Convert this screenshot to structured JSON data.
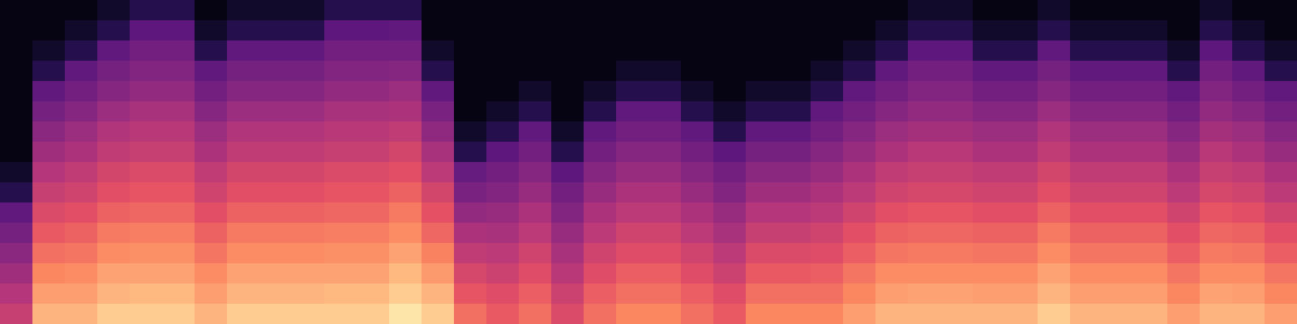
{
  "chart_data": {
    "type": "heatmap",
    "tick_labels": false,
    "zlim": [
      0,
      1
    ],
    "cells": [
      [
        0.03,
        0.03,
        0.03,
        0.08,
        0.15,
        0.15,
        0.03,
        0.08,
        0.08,
        0.08,
        0.15,
        0.15,
        0.15,
        0.03,
        0.03,
        0.03,
        0.03,
        0.03,
        0.03,
        0.03,
        0.03,
        0.03,
        0.03,
        0.03,
        0.03,
        0.03,
        0.03,
        0.03,
        0.08,
        0.08,
        0.03,
        0.03,
        0.08,
        0.03,
        0.03,
        0.03,
        0.03,
        0.08,
        0.03,
        0.03
      ],
      [
        0.03,
        0.03,
        0.08,
        0.15,
        0.29,
        0.29,
        0.08,
        0.15,
        0.15,
        0.15,
        0.29,
        0.29,
        0.3,
        0.03,
        0.03,
        0.03,
        0.03,
        0.03,
        0.03,
        0.03,
        0.03,
        0.03,
        0.03,
        0.03,
        0.03,
        0.03,
        0.03,
        0.08,
        0.15,
        0.15,
        0.08,
        0.08,
        0.15,
        0.08,
        0.08,
        0.08,
        0.03,
        0.15,
        0.08,
        0.03
      ],
      [
        0.03,
        0.08,
        0.15,
        0.3,
        0.34,
        0.34,
        0.15,
        0.3,
        0.3,
        0.3,
        0.34,
        0.34,
        0.34,
        0.08,
        0.03,
        0.03,
        0.03,
        0.03,
        0.03,
        0.03,
        0.03,
        0.03,
        0.03,
        0.03,
        0.03,
        0.03,
        0.08,
        0.15,
        0.29,
        0.29,
        0.15,
        0.15,
        0.3,
        0.15,
        0.15,
        0.15,
        0.08,
        0.29,
        0.15,
        0.08
      ],
      [
        0.03,
        0.15,
        0.3,
        0.35,
        0.38,
        0.38,
        0.3,
        0.35,
        0.35,
        0.35,
        0.38,
        0.38,
        0.39,
        0.15,
        0.03,
        0.03,
        0.03,
        0.03,
        0.03,
        0.08,
        0.08,
        0.03,
        0.03,
        0.03,
        0.03,
        0.08,
        0.15,
        0.3,
        0.34,
        0.34,
        0.3,
        0.3,
        0.35,
        0.3,
        0.3,
        0.3,
        0.15,
        0.34,
        0.3,
        0.15
      ],
      [
        0.03,
        0.3,
        0.34,
        0.39,
        0.42,
        0.42,
        0.34,
        0.39,
        0.39,
        0.39,
        0.42,
        0.42,
        0.44,
        0.3,
        0.03,
        0.03,
        0.08,
        0.03,
        0.08,
        0.15,
        0.15,
        0.08,
        0.03,
        0.08,
        0.08,
        0.15,
        0.3,
        0.34,
        0.38,
        0.38,
        0.34,
        0.34,
        0.39,
        0.34,
        0.34,
        0.34,
        0.3,
        0.38,
        0.34,
        0.3
      ],
      [
        0.03,
        0.35,
        0.39,
        0.44,
        0.47,
        0.47,
        0.39,
        0.44,
        0.44,
        0.44,
        0.47,
        0.47,
        0.48,
        0.36,
        0.03,
        0.08,
        0.15,
        0.03,
        0.15,
        0.3,
        0.3,
        0.15,
        0.08,
        0.15,
        0.15,
        0.3,
        0.34,
        0.39,
        0.42,
        0.42,
        0.39,
        0.39,
        0.44,
        0.39,
        0.39,
        0.39,
        0.34,
        0.42,
        0.39,
        0.34
      ],
      [
        0.03,
        0.4,
        0.44,
        0.49,
        0.51,
        0.51,
        0.44,
        0.49,
        0.49,
        0.49,
        0.51,
        0.51,
        0.53,
        0.41,
        0.08,
        0.15,
        0.3,
        0.08,
        0.3,
        0.34,
        0.34,
        0.3,
        0.15,
        0.3,
        0.3,
        0.34,
        0.39,
        0.44,
        0.46,
        0.46,
        0.44,
        0.44,
        0.49,
        0.44,
        0.44,
        0.44,
        0.39,
        0.46,
        0.44,
        0.39
      ],
      [
        0.03,
        0.45,
        0.48,
        0.53,
        0.55,
        0.55,
        0.48,
        0.53,
        0.53,
        0.53,
        0.55,
        0.55,
        0.58,
        0.47,
        0.15,
        0.29,
        0.34,
        0.15,
        0.34,
        0.39,
        0.39,
        0.34,
        0.29,
        0.35,
        0.35,
        0.39,
        0.43,
        0.48,
        0.51,
        0.51,
        0.48,
        0.48,
        0.53,
        0.48,
        0.48,
        0.48,
        0.43,
        0.51,
        0.48,
        0.43
      ],
      [
        0.08,
        0.5,
        0.53,
        0.58,
        0.6,
        0.6,
        0.53,
        0.58,
        0.58,
        0.58,
        0.6,
        0.6,
        0.62,
        0.52,
        0.31,
        0.34,
        0.39,
        0.29,
        0.39,
        0.43,
        0.43,
        0.39,
        0.34,
        0.4,
        0.4,
        0.43,
        0.48,
        0.53,
        0.55,
        0.55,
        0.53,
        0.53,
        0.58,
        0.53,
        0.53,
        0.53,
        0.48,
        0.55,
        0.53,
        0.48
      ],
      [
        0.15,
        0.55,
        0.57,
        0.62,
        0.64,
        0.64,
        0.57,
        0.62,
        0.62,
        0.62,
        0.64,
        0.64,
        0.67,
        0.58,
        0.36,
        0.38,
        0.43,
        0.34,
        0.43,
        0.48,
        0.48,
        0.43,
        0.38,
        0.45,
        0.45,
        0.48,
        0.52,
        0.57,
        0.59,
        0.59,
        0.57,
        0.57,
        0.62,
        0.57,
        0.57,
        0.57,
        0.52,
        0.59,
        0.57,
        0.52
      ],
      [
        0.3,
        0.6,
        0.62,
        0.67,
        0.68,
        0.68,
        0.62,
        0.67,
        0.67,
        0.67,
        0.68,
        0.68,
        0.72,
        0.63,
        0.42,
        0.43,
        0.48,
        0.38,
        0.48,
        0.52,
        0.52,
        0.48,
        0.43,
        0.5,
        0.5,
        0.52,
        0.57,
        0.62,
        0.64,
        0.64,
        0.62,
        0.62,
        0.67,
        0.62,
        0.62,
        0.62,
        0.57,
        0.64,
        0.62,
        0.57
      ],
      [
        0.35,
        0.65,
        0.67,
        0.72,
        0.73,
        0.73,
        0.67,
        0.72,
        0.72,
        0.72,
        0.73,
        0.73,
        0.76,
        0.68,
        0.48,
        0.47,
        0.52,
        0.43,
        0.52,
        0.57,
        0.57,
        0.52,
        0.47,
        0.55,
        0.55,
        0.57,
        0.62,
        0.67,
        0.68,
        0.68,
        0.67,
        0.67,
        0.72,
        0.67,
        0.67,
        0.67,
        0.62,
        0.68,
        0.67,
        0.62
      ],
      [
        0.4,
        0.7,
        0.71,
        0.76,
        0.77,
        0.77,
        0.71,
        0.76,
        0.76,
        0.76,
        0.77,
        0.77,
        0.81,
        0.74,
        0.53,
        0.52,
        0.57,
        0.47,
        0.57,
        0.61,
        0.61,
        0.57,
        0.52,
        0.6,
        0.6,
        0.61,
        0.66,
        0.71,
        0.72,
        0.72,
        0.71,
        0.71,
        0.76,
        0.71,
        0.71,
        0.71,
        0.66,
        0.72,
        0.71,
        0.66
      ],
      [
        0.45,
        0.75,
        0.76,
        0.81,
        0.81,
        0.81,
        0.76,
        0.81,
        0.81,
        0.81,
        0.81,
        0.81,
        0.86,
        0.79,
        0.59,
        0.56,
        0.61,
        0.51,
        0.61,
        0.66,
        0.66,
        0.61,
        0.56,
        0.65,
        0.65,
        0.66,
        0.71,
        0.76,
        0.76,
        0.76,
        0.76,
        0.76,
        0.81,
        0.76,
        0.76,
        0.76,
        0.71,
        0.76,
        0.76,
        0.71
      ],
      [
        0.5,
        0.8,
        0.8,
        0.85,
        0.86,
        0.86,
        0.8,
        0.85,
        0.85,
        0.85,
        0.86,
        0.86,
        0.9,
        0.85,
        0.64,
        0.61,
        0.66,
        0.56,
        0.66,
        0.7,
        0.7,
        0.66,
        0.61,
        0.7,
        0.7,
        0.7,
        0.75,
        0.8,
        0.81,
        0.81,
        0.8,
        0.8,
        0.85,
        0.8,
        0.8,
        0.8,
        0.75,
        0.81,
        0.8,
        0.75
      ],
      [
        0.55,
        0.85,
        0.85,
        0.9,
        0.9,
        0.9,
        0.85,
        0.9,
        0.9,
        0.9,
        0.9,
        0.9,
        0.95,
        0.9,
        0.7,
        0.65,
        0.7,
        0.6,
        0.7,
        0.75,
        0.75,
        0.7,
        0.65,
        0.75,
        0.75,
        0.75,
        0.8,
        0.85,
        0.85,
        0.85,
        0.85,
        0.85,
        0.9,
        0.85,
        0.85,
        0.85,
        0.8,
        0.85,
        0.85,
        0.8
      ]
    ]
  }
}
